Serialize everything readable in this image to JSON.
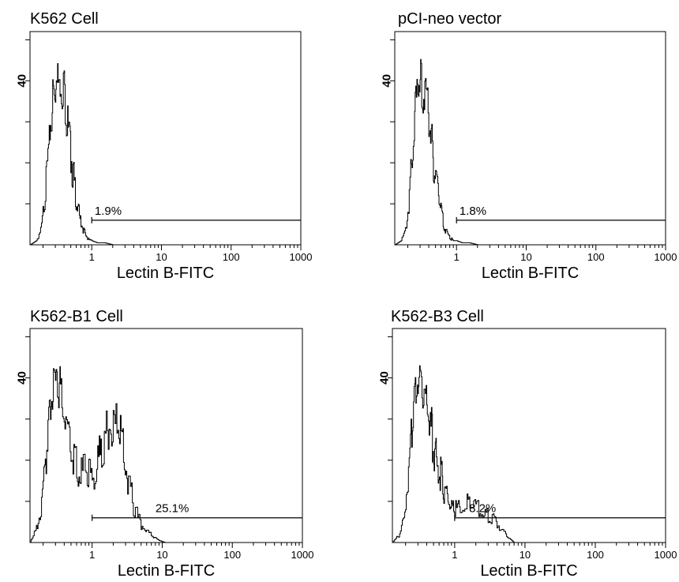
{
  "figure": {
    "panels": [
      {
        "title": "K562 Cell",
        "gate_label": "1.9%"
      },
      {
        "title": "pCI-neo vector",
        "gate_label": "1.8%"
      },
      {
        "title": "K562-B1 Cell",
        "gate_label": "25.1%"
      },
      {
        "title": "K562-B3 Cell",
        "gate_label": "8.2%"
      }
    ]
  },
  "chart_data": [
    {
      "type": "area",
      "title": "K562 Cell",
      "xlabel": "Lectin B-FITC",
      "ylabel": "",
      "x_scale": "log",
      "xlim": [
        0.13,
        1000
      ],
      "xticks": [
        "1",
        "10",
        "100",
        "1000"
      ],
      "ylim": [
        0,
        52
      ],
      "yticks": [
        "40"
      ],
      "gate": {
        "from": 1,
        "to": 1000,
        "label": "1.9%"
      },
      "x": [
        0.13,
        0.16,
        0.19,
        0.22,
        0.25,
        0.28,
        0.31,
        0.35,
        0.4,
        0.45,
        0.5,
        0.56,
        0.63,
        0.7,
        0.8,
        0.9,
        1.0,
        1.2,
        1.5,
        2.0
      ],
      "y": [
        0,
        1,
        5,
        17,
        31,
        40,
        42,
        43,
        41,
        32,
        25,
        17,
        10,
        6,
        3,
        1.5,
        1,
        0.5,
        0.5,
        0
      ]
    },
    {
      "type": "area",
      "title": "pCI-neo vector",
      "xlabel": "Lectin B-FITC",
      "ylabel": "",
      "x_scale": "log",
      "xlim": [
        0.13,
        1000
      ],
      "xticks": [
        "1",
        "10",
        "100",
        "1000"
      ],
      "ylim": [
        0,
        52
      ],
      "yticks": [
        "40"
      ],
      "gate": {
        "from": 1,
        "to": 1000,
        "label": "1.8%"
      },
      "x": [
        0.13,
        0.16,
        0.19,
        0.22,
        0.25,
        0.28,
        0.31,
        0.35,
        0.4,
        0.45,
        0.5,
        0.56,
        0.63,
        0.7,
        0.8,
        0.9,
        1.0,
        1.2,
        1.5,
        2.0
      ],
      "y": [
        0,
        1,
        5,
        19,
        33,
        44,
        42,
        40,
        34,
        26,
        18,
        12,
        7,
        4,
        2,
        1,
        1,
        0.5,
        0.5,
        0
      ]
    },
    {
      "type": "area",
      "title": "K562-B1 Cell",
      "xlabel": "Lectin B-FITC",
      "ylabel": "",
      "x_scale": "log",
      "xlim": [
        0.13,
        1000
      ],
      "xticks": [
        "1",
        "10",
        "100",
        "1000"
      ],
      "ylim": [
        0,
        52
      ],
      "yticks": [
        "40"
      ],
      "gate": {
        "from": 1,
        "to": 1000,
        "label": "25.1%"
      },
      "x": [
        0.13,
        0.16,
        0.19,
        0.22,
        0.25,
        0.28,
        0.32,
        0.36,
        0.42,
        0.5,
        0.6,
        0.7,
        0.85,
        1.0,
        1.2,
        1.4,
        1.7,
        2.0,
        2.4,
        2.8,
        3.3,
        4.0,
        5.0,
        6.0,
        7.5,
        9.0,
        11.0
      ],
      "y": [
        0,
        4,
        10,
        24,
        36,
        40,
        42,
        39,
        32,
        26,
        21,
        19,
        20,
        19,
        22,
        26,
        31,
        32,
        30,
        25,
        17,
        9,
        5,
        3,
        1.5,
        0.5,
        0
      ]
    },
    {
      "type": "area",
      "title": "K562-B3 Cell",
      "xlabel": "Lectin B-FITC",
      "ylabel": "",
      "x_scale": "log",
      "xlim": [
        0.13,
        1000
      ],
      "xticks": [
        "1",
        "10",
        "100",
        "1000"
      ],
      "ylim": [
        0,
        52
      ],
      "yticks": [
        "40"
      ],
      "gate": {
        "from": 1,
        "to": 1000,
        "label": "8.2%"
      },
      "x": [
        0.13,
        0.16,
        0.19,
        0.22,
        0.25,
        0.28,
        0.31,
        0.35,
        0.4,
        0.45,
        0.5,
        0.56,
        0.63,
        0.7,
        0.8,
        0.9,
        1.0,
        1.2,
        1.5,
        1.8,
        2.2,
        2.7,
        3.3,
        4.0,
        5.0,
        6.0,
        7.0
      ],
      "y": [
        0,
        2,
        7,
        20,
        33,
        41,
        42,
        39,
        37,
        32,
        26,
        23,
        19,
        15,
        12,
        10,
        9,
        10,
        11,
        10,
        9,
        8,
        7,
        5,
        3,
        1,
        0
      ]
    }
  ]
}
